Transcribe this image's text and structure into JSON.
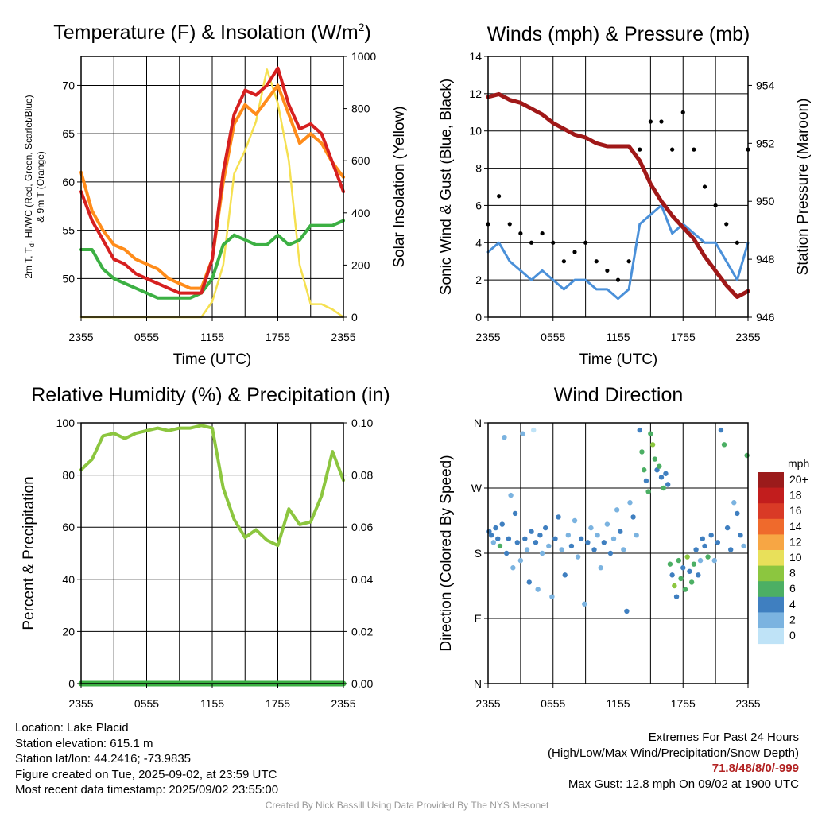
{
  "colors": {
    "temp": "#d62020",
    "dewpoint": "#3cb043",
    "heat_index": "#ff8c1a",
    "temp9m": "#ff8c1a",
    "solar": "#f5e050",
    "wind": "#4a90d9",
    "gust": "#000000",
    "pressure": "#a01818",
    "rh": "#8cc63f",
    "precip": "#3cb043"
  },
  "footer_left": {
    "location": "Location: Lake Placid",
    "elevation": "Station elevation: 615.1 m",
    "latlon": "Station lat/lon: 44.2416; -73.9835",
    "created": "Figure created on Tue, 2025-09-02, at 23:59 UTC",
    "recent": "Most recent data timestamp: 2025/09/02 23:55:00"
  },
  "footer_right": {
    "title": "Extremes For Past 24 Hours",
    "subtitle": "(High/Low/Max Wind/Precipitation/Snow Depth)",
    "values": "71.8/48/8/0/-999",
    "gust": "Max Gust: 12.8 mph On 09/02 at 1900 UTC"
  },
  "credit": "Created By Nick Bassill Using Data Provided By The NYS Mesonet",
  "chart_data": [
    {
      "type": "line",
      "title_main": "Temperature (F) & Insolation (W/m",
      "title_sup": "2",
      "title_end": ")",
      "xlabel": "Time (UTC)",
      "ylabel_line1": "2m T, T",
      "ylabel_sub": "d",
      "ylabel_line1_end": ", HI/WC (Red, Green, Scarlet/Blue)",
      "ylabel_line2": "& 9m T (Orange)",
      "y2label": "Solar Insolation (Yellow)",
      "x_ticks": [
        "2355",
        "0555",
        "1155",
        "1755",
        "2355"
      ],
      "y_ticks": [
        "50",
        "55",
        "60",
        "65",
        "70"
      ],
      "y2_ticks": [
        "0",
        "200",
        "400",
        "600",
        "800",
        "1000"
      ],
      "ylim": [
        46,
        73
      ],
      "y2lim": [
        0,
        1000
      ],
      "x": [
        0,
        1,
        2,
        3,
        4,
        5,
        6,
        7,
        8,
        9,
        10,
        11,
        12,
        13,
        14,
        15,
        16,
        17,
        18,
        19,
        20,
        21,
        22,
        23,
        24
      ],
      "series": [
        {
          "key": "temp",
          "values": [
            59,
            56,
            54,
            52,
            51.5,
            50.5,
            50,
            49.5,
            49,
            48.5,
            48.5,
            48.5,
            52,
            61,
            67,
            69.5,
            69,
            70,
            71.8,
            68,
            65.5,
            66,
            65,
            62,
            59
          ]
        },
        {
          "key": "temp9m",
          "values": [
            61,
            57,
            55,
            53.5,
            53,
            52,
            51.5,
            51,
            50,
            49.5,
            49,
            49,
            52,
            60,
            66,
            68,
            67,
            68.5,
            70,
            67,
            64,
            65,
            64,
            62,
            60.5
          ]
        },
        {
          "key": "dewpoint",
          "values": [
            53,
            53,
            51,
            50,
            49.5,
            49,
            48.5,
            48,
            48,
            48,
            48,
            48.5,
            50,
            53.5,
            54.5,
            54,
            53.5,
            53.5,
            54.5,
            53.5,
            54,
            55.5,
            55.5,
            55.5,
            56
          ]
        },
        {
          "key": "solar",
          "y_axis": "right",
          "values": [
            0,
            0,
            0,
            0,
            0,
            0,
            0,
            0,
            0,
            0,
            0,
            0,
            60,
            200,
            550,
            640,
            750,
            950,
            820,
            600,
            200,
            50,
            50,
            30,
            0
          ]
        }
      ]
    },
    {
      "type": "line",
      "title": "Winds (mph) & Pressure (mb)",
      "xlabel": "Time (UTC)",
      "ylabel": "Sonic Wind & Gust (Blue, Black)",
      "y2label": "Station Pressure (Maroon)",
      "x_ticks": [
        "2355",
        "0555",
        "1155",
        "1755",
        "2355"
      ],
      "y_ticks": [
        "0",
        "2",
        "4",
        "6",
        "8",
        "10",
        "12",
        "14"
      ],
      "y2_ticks": [
        "946",
        "948",
        "950",
        "952",
        "954"
      ],
      "ylim": [
        0,
        14
      ],
      "y2lim": [
        946,
        955
      ],
      "x": [
        0,
        1,
        2,
        3,
        4,
        5,
        6,
        7,
        8,
        9,
        10,
        11,
        12,
        13,
        14,
        15,
        16,
        17,
        18,
        19,
        20,
        21,
        22,
        23,
        24
      ],
      "series": [
        {
          "key": "wind",
          "values": [
            3.5,
            4,
            3,
            2.5,
            2,
            2.5,
            2,
            1.5,
            2,
            2,
            1.5,
            1.5,
            1,
            1.5,
            5,
            5.5,
            6,
            4.5,
            5,
            4.5,
            4,
            4,
            3,
            2,
            4
          ]
        },
        {
          "key": "gust",
          "values": [
            5,
            6.5,
            5,
            4.5,
            4,
            4.5,
            4,
            3,
            3.5,
            4,
            3,
            2.5,
            2,
            3,
            9,
            10.5,
            10.5,
            9,
            11,
            9,
            7,
            6,
            5,
            4,
            9
          ]
        },
        {
          "key": "pressure",
          "y_axis": "right",
          "values": [
            953.6,
            953.7,
            953.5,
            953.4,
            953.2,
            953.0,
            952.7,
            952.5,
            952.3,
            952.2,
            952.0,
            951.9,
            951.9,
            951.9,
            951.4,
            950.6,
            950.0,
            949.5,
            949.1,
            948.7,
            948.1,
            947.6,
            947.1,
            946.7,
            946.9
          ]
        }
      ]
    },
    {
      "type": "line",
      "title": "Relative Humidity (%) & Precipitation (in)",
      "ylabel": "Percent & Precipitation",
      "x_ticks": [
        "2355",
        "0555",
        "1155",
        "1755",
        "2355"
      ],
      "y_ticks": [
        "0",
        "20",
        "40",
        "60",
        "80",
        "100"
      ],
      "y2_ticks": [
        "0.00",
        "0.02",
        "0.04",
        "0.06",
        "0.08",
        "0.10"
      ],
      "ylim": [
        0,
        100
      ],
      "y2lim": [
        0,
        0.1
      ],
      "x": [
        0,
        1,
        2,
        3,
        4,
        5,
        6,
        7,
        8,
        9,
        10,
        11,
        12,
        13,
        14,
        15,
        16,
        17,
        18,
        19,
        20,
        21,
        22,
        23,
        24
      ],
      "series": [
        {
          "key": "rh",
          "values": [
            82,
            86,
            95,
            96,
            94,
            96,
            97,
            98,
            97,
            98,
            98,
            99,
            98,
            75,
            63,
            56,
            59,
            55,
            53,
            67,
            61,
            62,
            72,
            89,
            78
          ]
        },
        {
          "key": "precip",
          "y_axis": "right",
          "values": [
            0,
            0,
            0,
            0,
            0,
            0,
            0,
            0,
            0,
            0,
            0,
            0,
            0,
            0,
            0,
            0,
            0,
            0,
            0,
            0,
            0,
            0,
            0,
            0,
            0
          ]
        }
      ]
    },
    {
      "type": "scatter",
      "title": "Wind Direction",
      "ylabel": "Direction (Colored By Speed)",
      "x_ticks": [
        "2355",
        "0555",
        "1155",
        "1755",
        "2355"
      ],
      "y_ticks": [
        "N",
        "E",
        "S",
        "W",
        "N"
      ],
      "ylim": [
        0,
        360
      ],
      "legend_title": "mph",
      "legend_labels": [
        "20+",
        "18",
        "16",
        "14",
        "12",
        "10",
        "8",
        "6",
        "4",
        "2",
        "0"
      ],
      "legend_colors": [
        "#9b1b1b",
        "#c21d1d",
        "#d93a26",
        "#ef6a2c",
        "#f7a644",
        "#e8e05a",
        "#8cc63f",
        "#4caf64",
        "#3f7fc0",
        "#7bb3e0",
        "#bfe3f7"
      ],
      "points": [
        {
          "x": 0.1,
          "dir": 210,
          "spd": 3
        },
        {
          "x": 0.3,
          "dir": 205,
          "spd": 4
        },
        {
          "x": 0.5,
          "dir": 195,
          "spd": 2
        },
        {
          "x": 0.7,
          "dir": 215,
          "spd": 3
        },
        {
          "x": 0.9,
          "dir": 200,
          "spd": 4
        },
        {
          "x": 1.1,
          "dir": 190,
          "spd": 5
        },
        {
          "x": 1.3,
          "dir": 220,
          "spd": 3
        },
        {
          "x": 1.5,
          "dir": 340,
          "spd": 2
        },
        {
          "x": 1.7,
          "dir": 180,
          "spd": 4
        },
        {
          "x": 1.9,
          "dir": 200,
          "spd": 3
        },
        {
          "x": 2.1,
          "dir": 260,
          "spd": 1
        },
        {
          "x": 2.3,
          "dir": 160,
          "spd": 2
        },
        {
          "x": 2.5,
          "dir": 235,
          "spd": 3
        },
        {
          "x": 2.7,
          "dir": 195,
          "spd": 4
        },
        {
          "x": 3.0,
          "dir": 170,
          "spd": 1
        },
        {
          "x": 3.2,
          "dir": 345,
          "spd": 1
        },
        {
          "x": 3.4,
          "dir": 200,
          "spd": 3
        },
        {
          "x": 3.6,
          "dir": 185,
          "spd": 2
        },
        {
          "x": 3.8,
          "dir": 140,
          "spd": 4
        },
        {
          "x": 4.0,
          "dir": 210,
          "spd": 3
        },
        {
          "x": 4.2,
          "dir": 350,
          "spd": 0
        },
        {
          "x": 4.4,
          "dir": 195,
          "spd": 3
        },
        {
          "x": 4.6,
          "dir": 130,
          "spd": 2
        },
        {
          "x": 4.8,
          "dir": 205,
          "spd": 4
        },
        {
          "x": 5.0,
          "dir": 180,
          "spd": 2
        },
        {
          "x": 5.3,
          "dir": 215,
          "spd": 3
        },
        {
          "x": 5.6,
          "dir": 190,
          "spd": 1
        },
        {
          "x": 5.9,
          "dir": 120,
          "spd": 2
        },
        {
          "x": 6.2,
          "dir": 200,
          "spd": 3
        },
        {
          "x": 6.5,
          "dir": 230,
          "spd": 4
        },
        {
          "x": 6.8,
          "dir": 185,
          "spd": 2
        },
        {
          "x": 7.1,
          "dir": 150,
          "spd": 3
        },
        {
          "x": 7.4,
          "dir": 205,
          "spd": 2
        },
        {
          "x": 7.7,
          "dir": 190,
          "spd": 3
        },
        {
          "x": 8.0,
          "dir": 225,
          "spd": 1
        },
        {
          "x": 8.3,
          "dir": 175,
          "spd": 2
        },
        {
          "x": 8.6,
          "dir": 200,
          "spd": 3
        },
        {
          "x": 8.9,
          "dir": 110,
          "spd": 2
        },
        {
          "x": 9.2,
          "dir": 195,
          "spd": 3
        },
        {
          "x": 9.5,
          "dir": 215,
          "spd": 2
        },
        {
          "x": 9.8,
          "dir": 185,
          "spd": 3
        },
        {
          "x": 10.1,
          "dir": 205,
          "spd": 2
        },
        {
          "x": 10.4,
          "dir": 160,
          "spd": 1
        },
        {
          "x": 10.7,
          "dir": 195,
          "spd": 3
        },
        {
          "x": 11.0,
          "dir": 220,
          "spd": 2
        },
        {
          "x": 11.3,
          "dir": 180,
          "spd": 3
        },
        {
          "x": 11.6,
          "dir": 200,
          "spd": 2
        },
        {
          "x": 11.9,
          "dir": 240,
          "spd": 1
        },
        {
          "x": 12.2,
          "dir": 210,
          "spd": 3
        },
        {
          "x": 12.5,
          "dir": 185,
          "spd": 2
        },
        {
          "x": 12.8,
          "dir": 100,
          "spd": 3
        },
        {
          "x": 13.1,
          "dir": 250,
          "spd": 2
        },
        {
          "x": 13.4,
          "dir": 230,
          "spd": 4
        },
        {
          "x": 13.7,
          "dir": 205,
          "spd": 2
        },
        {
          "x": 14.0,
          "dir": 350,
          "spd": 4
        },
        {
          "x": 14.2,
          "dir": 320,
          "spd": 5
        },
        {
          "x": 14.4,
          "dir": 295,
          "spd": 6
        },
        {
          "x": 14.6,
          "dir": 280,
          "spd": 4
        },
        {
          "x": 14.8,
          "dir": 265,
          "spd": 5
        },
        {
          "x": 15.0,
          "dir": 345,
          "spd": 6
        },
        {
          "x": 15.2,
          "dir": 330,
          "spd": 7
        },
        {
          "x": 15.4,
          "dir": 310,
          "spd": 5
        },
        {
          "x": 15.6,
          "dir": 295,
          "spd": 4
        },
        {
          "x": 15.8,
          "dir": 300,
          "spd": 6
        },
        {
          "x": 16.0,
          "dir": 285,
          "spd": 4
        },
        {
          "x": 16.2,
          "dir": 270,
          "spd": 5
        },
        {
          "x": 16.4,
          "dir": 290,
          "spd": 3
        },
        {
          "x": 16.6,
          "dir": 275,
          "spd": 4
        },
        {
          "x": 16.8,
          "dir": 165,
          "spd": 6
        },
        {
          "x": 17.0,
          "dir": 150,
          "spd": 4
        },
        {
          "x": 17.2,
          "dir": 135,
          "spd": 7
        },
        {
          "x": 17.4,
          "dir": 120,
          "spd": 4
        },
        {
          "x": 17.6,
          "dir": 170,
          "spd": 6
        },
        {
          "x": 17.8,
          "dir": 145,
          "spd": 5
        },
        {
          "x": 18.0,
          "dir": 160,
          "spd": 4
        },
        {
          "x": 18.2,
          "dir": 130,
          "spd": 6
        },
        {
          "x": 18.4,
          "dir": 175,
          "spd": 7
        },
        {
          "x": 18.6,
          "dir": 155,
          "spd": 4
        },
        {
          "x": 18.8,
          "dir": 140,
          "spd": 5
        },
        {
          "x": 19.0,
          "dir": 165,
          "spd": 6
        },
        {
          "x": 19.2,
          "dir": 185,
          "spd": 4
        },
        {
          "x": 19.4,
          "dir": 150,
          "spd": 3
        },
        {
          "x": 19.6,
          "dir": 170,
          "spd": 2
        },
        {
          "x": 19.8,
          "dir": 200,
          "spd": 3
        },
        {
          "x": 20.0,
          "dir": 190,
          "spd": 4
        },
        {
          "x": 20.3,
          "dir": 175,
          "spd": 5
        },
        {
          "x": 20.6,
          "dir": 205,
          "spd": 3
        },
        {
          "x": 20.9,
          "dir": 170,
          "spd": 2
        },
        {
          "x": 21.2,
          "dir": 195,
          "spd": 4
        },
        {
          "x": 21.5,
          "dir": 350,
          "spd": 3
        },
        {
          "x": 21.8,
          "dir": 330,
          "spd": 6
        },
        {
          "x": 22.1,
          "dir": 215,
          "spd": 3
        },
        {
          "x": 22.4,
          "dir": 185,
          "spd": 4
        },
        {
          "x": 22.7,
          "dir": 250,
          "spd": 2
        },
        {
          "x": 23.0,
          "dir": 235,
          "spd": 3
        },
        {
          "x": 23.3,
          "dir": 205,
          "spd": 4
        },
        {
          "x": 23.6,
          "dir": 190,
          "spd": 2
        },
        {
          "x": 23.9,
          "dir": 315,
          "spd": 5
        }
      ]
    }
  ]
}
